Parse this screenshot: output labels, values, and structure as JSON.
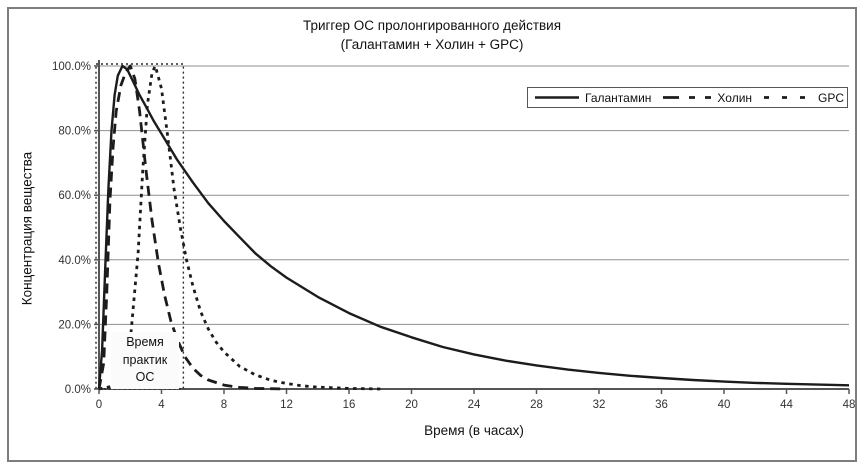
{
  "title": {
    "line1": "Триггер ОС пролонгированного действия",
    "line2": "(Галантамин + Холин + GPC)"
  },
  "annotation": {
    "line1": "Время",
    "line2": "практик",
    "line3": "ОС"
  },
  "legend": {
    "position": "top-right",
    "items": [
      {
        "label": "Галантамин",
        "style": "solid"
      },
      {
        "label": "Холин",
        "style": "long-dash"
      },
      {
        "label": "GPC",
        "style": "short-dash"
      }
    ]
  },
  "colors": {
    "series": "#1c1c1c",
    "grid": "#8f8f8f",
    "axis": "#555555",
    "tick_text": "#333333",
    "frame": "#7d7d7d",
    "annotation_stroke": "#2a2a2a"
  },
  "chart_data": {
    "type": "line",
    "title": "Триггер ОС пролонгированного действия (Галантамин + Холин + GPC)",
    "xlabel": "Время (в часах)",
    "ylabel": "Концентрация вещества",
    "xlim": [
      0,
      48
    ],
    "ylim": [
      0,
      100
    ],
    "grid": "horizontal",
    "legend_position": "top-right",
    "x_ticks": [
      0,
      4,
      8,
      12,
      16,
      20,
      24,
      28,
      32,
      36,
      40,
      44,
      48
    ],
    "y_ticks": [
      {
        "value": 0,
        "label": "0.0%"
      },
      {
        "value": 20,
        "label": "20.0%"
      },
      {
        "value": 40,
        "label": "40.0%"
      },
      {
        "value": 60,
        "label": "60.0%"
      },
      {
        "value": 80,
        "label": "80.0%"
      },
      {
        "value": 100,
        "label": "100.0%"
      }
    ],
    "annotation_box": {
      "label": "Время практик ОС",
      "x_range": [
        0,
        5.4
      ],
      "y_range": [
        0,
        100
      ],
      "style": "dotted"
    },
    "series": [
      {
        "name": "Галантамин",
        "style": "solid",
        "dash": "",
        "width": 2.4,
        "points": [
          [
            0,
            0
          ],
          [
            0.2,
            12
          ],
          [
            0.4,
            38
          ],
          [
            0.6,
            62
          ],
          [
            0.8,
            80
          ],
          [
            1,
            91
          ],
          [
            1.2,
            97
          ],
          [
            1.5,
            100
          ],
          [
            1.8,
            99
          ],
          [
            2.2,
            95
          ],
          [
            2.6,
            91
          ],
          [
            3,
            87.5
          ],
          [
            3.5,
            83
          ],
          [
            4,
            79
          ],
          [
            5,
            71
          ],
          [
            6,
            64
          ],
          [
            7,
            57.5
          ],
          [
            8,
            52
          ],
          [
            9,
            47
          ],
          [
            10,
            42
          ],
          [
            11,
            38
          ],
          [
            12,
            34.5
          ],
          [
            14,
            28.5
          ],
          [
            16,
            23.5
          ],
          [
            18,
            19.3
          ],
          [
            20,
            16
          ],
          [
            22,
            13
          ],
          [
            24,
            10.7
          ],
          [
            26,
            8.8
          ],
          [
            28,
            7.3
          ],
          [
            30,
            6
          ],
          [
            32,
            5
          ],
          [
            34,
            4.1
          ],
          [
            36,
            3.4
          ],
          [
            38,
            2.8
          ],
          [
            40,
            2.3
          ],
          [
            42,
            1.9
          ],
          [
            44,
            1.6
          ],
          [
            46,
            1.35
          ],
          [
            48,
            1.15
          ]
        ]
      },
      {
        "name": "Холин",
        "style": "long-dash",
        "dash": "10 6",
        "width": 2.8,
        "points": [
          [
            0,
            0
          ],
          [
            0.3,
            8
          ],
          [
            0.5,
            30
          ],
          [
            0.7,
            58
          ],
          [
            0.9,
            75
          ],
          [
            1.1,
            86
          ],
          [
            1.4,
            94
          ],
          [
            1.7,
            98
          ],
          [
            2,
            100
          ],
          [
            2.3,
            96
          ],
          [
            2.6,
            86
          ],
          [
            3,
            68
          ],
          [
            3.4,
            52
          ],
          [
            3.8,
            39
          ],
          [
            4.2,
            29
          ],
          [
            4.6,
            21
          ],
          [
            5,
            15.5
          ],
          [
            5.5,
            10
          ],
          [
            6,
            6.5
          ],
          [
            6.5,
            4.2
          ],
          [
            7,
            2.8
          ],
          [
            8,
            1.2
          ],
          [
            9,
            0.5
          ],
          [
            10,
            0.2
          ],
          [
            11,
            0.1
          ],
          [
            12,
            0
          ]
        ]
      },
      {
        "name": "GPC",
        "style": "short-dash",
        "dash": "3.5 4.5",
        "width": 2.8,
        "points": [
          [
            0,
            0
          ],
          [
            1,
            1
          ],
          [
            1.5,
            5
          ],
          [
            2,
            15
          ],
          [
            2.5,
            42
          ],
          [
            2.8,
            68
          ],
          [
            3.1,
            88
          ],
          [
            3.4,
            98
          ],
          [
            3.6,
            100
          ],
          [
            4,
            93
          ],
          [
            4.4,
            78
          ],
          [
            4.8,
            62
          ],
          [
            5.2,
            50
          ],
          [
            5.6,
            40
          ],
          [
            6,
            32
          ],
          [
            6.5,
            24
          ],
          [
            7,
            18.5
          ],
          [
            7.5,
            14.5
          ],
          [
            8,
            11.5
          ],
          [
            9,
            7
          ],
          [
            10,
            4.4
          ],
          [
            11,
            2.7
          ],
          [
            12,
            1.7
          ],
          [
            13,
            1
          ],
          [
            14,
            0.6
          ],
          [
            16,
            0.2
          ],
          [
            18,
            0
          ]
        ]
      }
    ]
  }
}
